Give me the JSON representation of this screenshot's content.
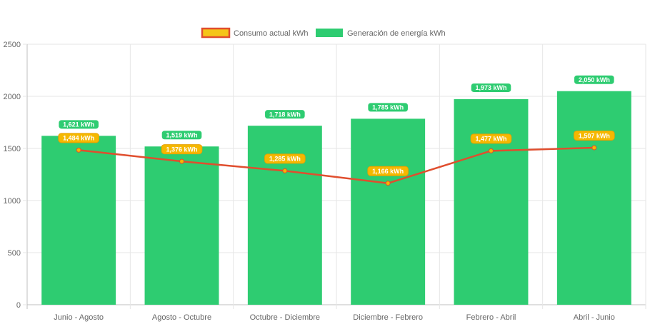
{
  "chart_data": {
    "type": "bar",
    "categories": [
      "Junio - Agosto",
      "Agosto - Octubre",
      "Octubre - Diciembre",
      "Diciembre - Febrero",
      "Febrero - Abril",
      "Abril - Junio"
    ],
    "series": [
      {
        "name": "Consumo actual kWh",
        "type": "line",
        "values": [
          1484,
          1376,
          1285,
          1166,
          1477,
          1507
        ],
        "data_labels": [
          "1,484 kWh",
          "1,376 kWh",
          "1,285 kWh",
          "1,166 kWh",
          "1,477 kWh",
          "1,507 kWh"
        ],
        "color": "#e04e2e",
        "label_color": "#f5b800",
        "label_border": "#e8a000"
      },
      {
        "name": "Generación de energía kWh",
        "type": "bar",
        "values": [
          1621,
          1519,
          1718,
          1785,
          1973,
          2050
        ],
        "data_labels": [
          "1,621 kWh",
          "1,519 kWh",
          "1,718 kWh",
          "1,785 kWh",
          "1,973 kWh",
          "2,050 kWh"
        ],
        "color": "#2ecc71"
      }
    ],
    "ylim": [
      0,
      2500
    ],
    "yticks": [
      "0",
      "500",
      "1000",
      "1500",
      "2000",
      "2500"
    ],
    "ytick_values": [
      0,
      500,
      1000,
      1500,
      2000,
      2500
    ],
    "grid": true,
    "legend_position": "top-center",
    "legend_line_swatch": {
      "fill": "#f5c518",
      "border": "#e04e2e"
    },
    "title": "",
    "xlabel": "",
    "ylabel": ""
  }
}
